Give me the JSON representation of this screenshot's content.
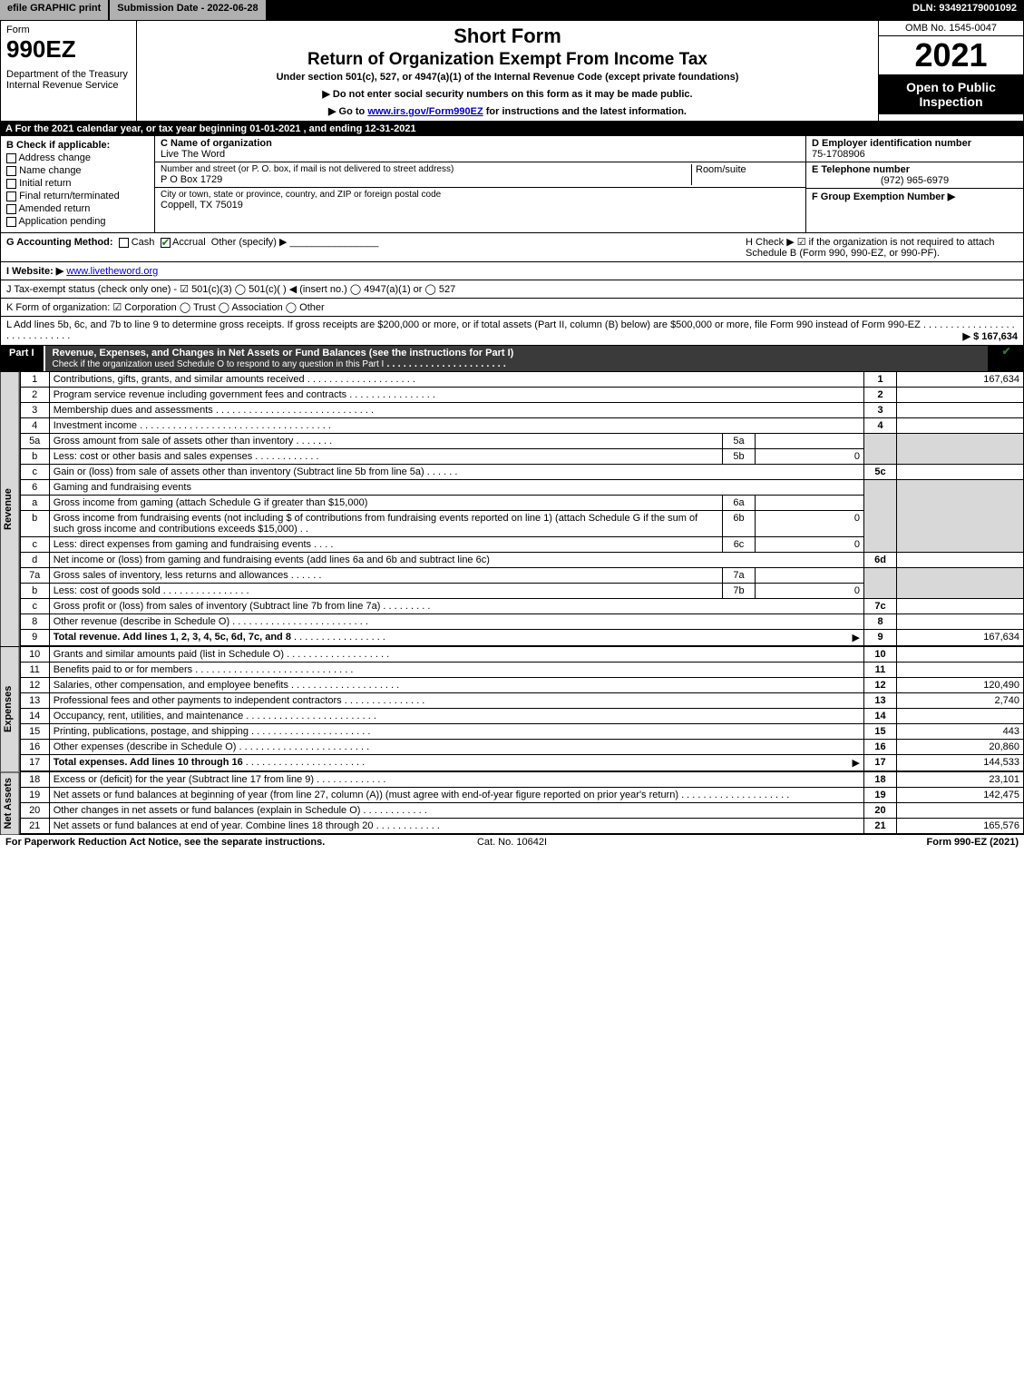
{
  "topbar": {
    "efile": "efile GRAPHIC print",
    "submission": "Submission Date - 2022-06-28",
    "dln": "DLN: 93492179001092"
  },
  "header": {
    "form_label": "Form",
    "form_no": "990EZ",
    "dept": "Department of the Treasury\nInternal Revenue Service",
    "short_form": "Short Form",
    "title": "Return of Organization Exempt From Income Tax",
    "under": "Under section 501(c), 527, or 4947(a)(1) of the Internal Revenue Code (except private foundations)",
    "note1": "▶ Do not enter social security numbers on this form as it may be made public.",
    "note2_pre": "▶ Go to ",
    "note2_link": "www.irs.gov/Form990EZ",
    "note2_post": " for instructions and the latest information.",
    "omb": "OMB No. 1545-0047",
    "year": "2021",
    "open": "Open to Public Inspection"
  },
  "A": "A  For the 2021 calendar year, or tax year beginning 01-01-2021 , and ending 12-31-2021",
  "B": {
    "label": "B  Check if applicable:",
    "opts": [
      "Address change",
      "Name change",
      "Initial return",
      "Final return/terminated",
      "Amended return",
      "Application pending"
    ]
  },
  "C": {
    "name_label": "C Name of organization",
    "name": "Live The Word",
    "street_label": "Number and street (or P. O. box, if mail is not delivered to street address)",
    "street": "P O Box 1729",
    "room_label": "Room/suite",
    "city_label": "City or town, state or province, country, and ZIP or foreign postal code",
    "city": "Coppell, TX  75019"
  },
  "D": {
    "ein_label": "D Employer identification number",
    "ein": "75-1708906",
    "tel_label": "E Telephone number",
    "tel": "(972) 965-6979",
    "grp_label": "F Group Exemption Number   ▶"
  },
  "G": {
    "label": "G Accounting Method:",
    "cash": "Cash",
    "accrual": "Accrual",
    "other": "Other (specify) ▶"
  },
  "H": "H   Check ▶  ☑  if the organization is not required to attach Schedule B (Form 990, 990-EZ, or 990-PF).",
  "I": {
    "label": "I Website: ▶",
    "url": "www.livetheword.org"
  },
  "J": "J Tax-exempt status (check only one) - ☑ 501(c)(3)  ◯ 501(c)(  ) ◀ (insert no.)  ◯ 4947(a)(1) or  ◯ 527",
  "K": "K Form of organization:  ☑ Corporation   ◯ Trust   ◯ Association   ◯ Other",
  "L": {
    "text": "L Add lines 5b, 6c, and 7b to line 9 to determine gross receipts. If gross receipts are $200,000 or more, or if total assets (Part II, column (B) below) are $500,000 or more, file Form 990 instead of Form 990-EZ",
    "amount": "▶ $ 167,634"
  },
  "part1": {
    "tag": "Part I",
    "title": "Revenue, Expenses, and Changes in Net Assets or Fund Balances (see the instructions for Part I)",
    "sub": "Check if the organization used Schedule O to respond to any question in this Part I"
  },
  "vtabs": {
    "rev": "Revenue",
    "exp": "Expenses",
    "net": "Net Assets"
  },
  "lines": {
    "1": {
      "t": "Contributions, gifts, grants, and similar amounts received",
      "v": "167,634"
    },
    "2": {
      "t": "Program service revenue including government fees and contracts",
      "v": ""
    },
    "3": {
      "t": "Membership dues and assessments",
      "v": ""
    },
    "4": {
      "t": "Investment income",
      "v": ""
    },
    "5a": {
      "t": "Gross amount from sale of assets other than inventory",
      "sv": ""
    },
    "5b": {
      "t": "Less: cost or other basis and sales expenses",
      "sv": "0"
    },
    "5c": {
      "t": "Gain or (loss) from sale of assets other than inventory (Subtract line 5b from line 5a)",
      "v": ""
    },
    "6": {
      "t": "Gaming and fundraising events"
    },
    "6a": {
      "t": "Gross income from gaming (attach Schedule G if greater than $15,000)",
      "sv": ""
    },
    "6b": {
      "t": "Gross income from fundraising events (not including $            of contributions from fundraising events reported on line 1) (attach Schedule G if the sum of such gross income and contributions exceeds $15,000)",
      "sv": "0"
    },
    "6c": {
      "t": "Less: direct expenses from gaming and fundraising events",
      "sv": "0"
    },
    "6d": {
      "t": "Net income or (loss) from gaming and fundraising events (add lines 6a and 6b and subtract line 6c)",
      "v": ""
    },
    "7a": {
      "t": "Gross sales of inventory, less returns and allowances",
      "sv": ""
    },
    "7b": {
      "t": "Less: cost of goods sold",
      "sv": "0"
    },
    "7c": {
      "t": "Gross profit or (loss) from sales of inventory (Subtract line 7b from line 7a)",
      "v": ""
    },
    "8": {
      "t": "Other revenue (describe in Schedule O)",
      "v": ""
    },
    "9": {
      "t": "Total revenue. Add lines 1, 2, 3, 4, 5c, 6d, 7c, and 8",
      "v": "167,634",
      "arrow": "▶"
    },
    "10": {
      "t": "Grants and similar amounts paid (list in Schedule O)",
      "v": ""
    },
    "11": {
      "t": "Benefits paid to or for members",
      "v": ""
    },
    "12": {
      "t": "Salaries, other compensation, and employee benefits",
      "v": "120,490"
    },
    "13": {
      "t": "Professional fees and other payments to independent contractors",
      "v": "2,740"
    },
    "14": {
      "t": "Occupancy, rent, utilities, and maintenance",
      "v": ""
    },
    "15": {
      "t": "Printing, publications, postage, and shipping",
      "v": "443"
    },
    "16": {
      "t": "Other expenses (describe in Schedule O)",
      "v": "20,860"
    },
    "17": {
      "t": "Total expenses. Add lines 10 through 16",
      "v": "144,533",
      "arrow": "▶"
    },
    "18": {
      "t": "Excess or (deficit) for the year (Subtract line 17 from line 9)",
      "v": "23,101"
    },
    "19": {
      "t": "Net assets or fund balances at beginning of year (from line 27, column (A)) (must agree with end-of-year figure reported on prior year's return)",
      "v": "142,475"
    },
    "20": {
      "t": "Other changes in net assets or fund balances (explain in Schedule O)",
      "v": ""
    },
    "21": {
      "t": "Net assets or fund balances at end of year. Combine lines 18 through 20",
      "v": "165,576"
    }
  },
  "footer": {
    "l": "For Paperwork Reduction Act Notice, see the separate instructions.",
    "c": "Cat. No. 10642I",
    "r": "Form 990-EZ (2021)"
  },
  "colors": {
    "black": "#000000",
    "shade": "#d8d8d8",
    "grey": "#b0b0b0",
    "link": "#0000cc",
    "check": "#2a7a2a"
  }
}
